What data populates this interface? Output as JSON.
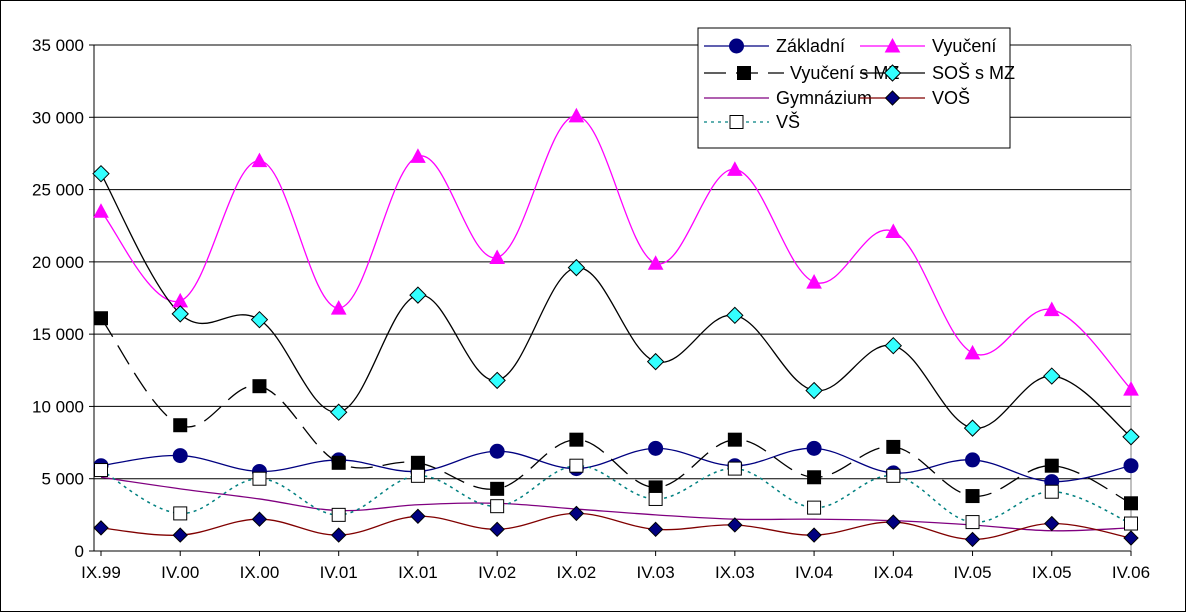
{
  "chart_data": {
    "type": "line",
    "title": "",
    "xlabel": "",
    "ylabel": "",
    "ylim": [
      0,
      35000
    ],
    "y_ticks": [
      "0",
      "5 000",
      "10 000",
      "15 000",
      "20 000",
      "25 000",
      "30 000",
      "35 000"
    ],
    "grid": "horizontal",
    "legend_position": "top-right",
    "categories": [
      "IX.99",
      "IV.00",
      "IX.00",
      "IV.01",
      "IX.01",
      "IV.02",
      "IX.02",
      "IV.03",
      "IX.03",
      "IV.04",
      "IX.04",
      "IV.05",
      "IX.05",
      "IV.06"
    ],
    "series": [
      {
        "name": "Základní",
        "color": "#000080",
        "marker": "circle",
        "line": "solid",
        "values": [
          5900,
          6600,
          5500,
          6300,
          5500,
          6900,
          5700,
          7100,
          5900,
          7100,
          5400,
          6300,
          4800,
          5900
        ]
      },
      {
        "name": "Vyučení",
        "color": "#ff00ff",
        "marker": "triangle",
        "line": "solid",
        "values": [
          23500,
          17300,
          27000,
          16800,
          27300,
          20300,
          30100,
          19900,
          26400,
          18600,
          22100,
          13700,
          16700,
          11200
        ]
      },
      {
        "name": "Vyučení s MZ",
        "color": "#000000",
        "marker": "square",
        "line": "dashed",
        "values": [
          16100,
          8700,
          11400,
          6100,
          6100,
          4300,
          7700,
          4400,
          7700,
          5100,
          7200,
          3800,
          5900,
          3300
        ]
      },
      {
        "name": "SOŠ s MZ",
        "color": "#000000",
        "marker": "diamond-cyan",
        "line": "solid",
        "values": [
          26100,
          16400,
          16000,
          9600,
          17700,
          11800,
          19600,
          13100,
          16300,
          11100,
          14200,
          8500,
          12100,
          7900
        ]
      },
      {
        "name": "Gymnázium",
        "color": "#800080",
        "marker": "none",
        "line": "solid",
        "values": [
          5100,
          4300,
          3600,
          2800,
          3200,
          3300,
          2900,
          2500,
          2200,
          2200,
          2100,
          1800,
          1400,
          1600
        ]
      },
      {
        "name": "VOŠ",
        "color": "#800000",
        "marker": "diamond-navy",
        "line": "solid",
        "values": [
          1600,
          1100,
          2200,
          1100,
          2400,
          1500,
          2600,
          1500,
          1800,
          1100,
          2000,
          800,
          1900,
          900
        ]
      },
      {
        "name": "VŠ",
        "color": "#008080",
        "marker": "square-open",
        "line": "dotted",
        "values": [
          5600,
          2600,
          5000,
          2500,
          5200,
          3100,
          5900,
          3600,
          5700,
          3000,
          5200,
          2000,
          4100,
          1900
        ]
      }
    ]
  }
}
